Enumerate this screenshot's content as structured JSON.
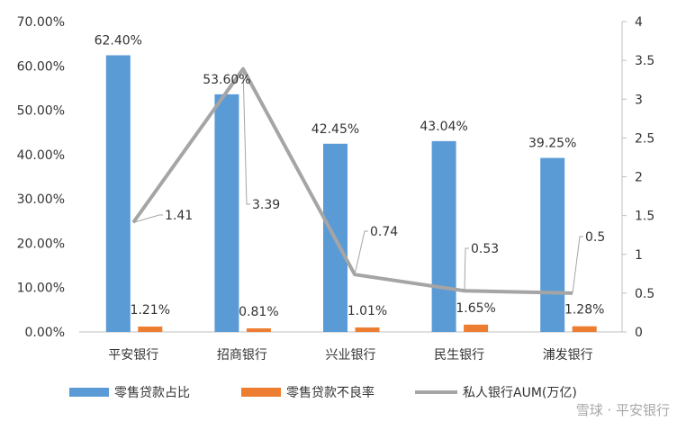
{
  "chart_data": {
    "type": "bar",
    "categories": [
      "平安银行",
      "招商银行",
      "兴业银行",
      "民生银行",
      "浦发银行"
    ],
    "series": [
      {
        "name": "零售贷款占比",
        "type": "bar",
        "axis": "left",
        "color": "#5b9bd5",
        "values": [
          62.4,
          53.6,
          42.45,
          43.04,
          39.25
        ],
        "labels": [
          "62.40%",
          "53.60%",
          "42.45%",
          "43.04%",
          "39.25%"
        ]
      },
      {
        "name": "零售贷款不良率",
        "type": "bar",
        "axis": "left",
        "color": "#ed7d31",
        "values": [
          1.21,
          0.81,
          1.01,
          1.65,
          1.28
        ],
        "labels": [
          "1.21%",
          "0.81%",
          "1.01%",
          "1.65%",
          "1.28%"
        ]
      },
      {
        "name": "私人银行AUM(万亿)",
        "type": "line",
        "axis": "right",
        "color": "#a5a5a5",
        "values": [
          1.41,
          3.39,
          0.74,
          0.53,
          0.5
        ],
        "labels": [
          "1.41",
          "3.39",
          "0.74",
          "0.53",
          "0.5"
        ]
      }
    ],
    "y_left": {
      "range": [
        0,
        70
      ],
      "ticks": [
        0,
        10,
        20,
        30,
        40,
        50,
        60,
        70
      ],
      "tick_labels": [
        "0.00%",
        "10.00%",
        "20.00%",
        "30.00%",
        "40.00%",
        "50.00%",
        "60.00%",
        "70.00%"
      ]
    },
    "y_right": {
      "range": [
        0,
        4
      ],
      "ticks": [
        0,
        0.5,
        1,
        1.5,
        2,
        2.5,
        3,
        3.5,
        4
      ],
      "tick_labels": [
        "0",
        "0.5",
        "1",
        "1.5",
        "2",
        "2.5",
        "3",
        "3.5",
        "4"
      ]
    },
    "grid": false,
    "legend": "bottom"
  },
  "watermark": "雪球 · 平安银行"
}
